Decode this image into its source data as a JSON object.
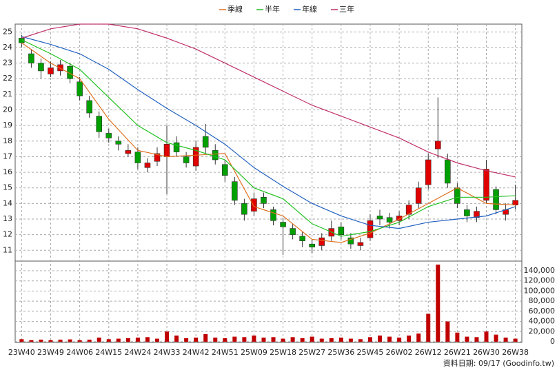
{
  "chart_data": {
    "type": "candlestick",
    "x": [
      0,
      3,
      6,
      9,
      12,
      15,
      18,
      21,
      24,
      27,
      30,
      33,
      36,
      39,
      42,
      45,
      48,
      51,
      54,
      57,
      60,
      63,
      66,
      69,
      72,
      75,
      78,
      81,
      84,
      87,
      90,
      93,
      96,
      99,
      102,
      105,
      108,
      111,
      114,
      117,
      120,
      123,
      126,
      129,
      132,
      135,
      138,
      141,
      144,
      147,
      150,
      153
    ],
    "open": [
      24.6,
      23.6,
      23.0,
      22.3,
      22.5,
      22.8,
      21.8,
      20.6,
      19.6,
      18.5,
      18.0,
      17.2,
      17.3,
      16.3,
      16.7,
      17.0,
      17.9,
      17.0,
      16.4,
      18.3,
      17.4,
      16.5,
      15.4,
      14.0,
      13.5,
      14.4,
      13.6,
      12.8,
      12.4,
      11.9,
      11.4,
      11.3,
      11.9,
      12.5,
      11.8,
      11.3,
      11.8,
      13.2,
      13.1,
      12.9,
      13.3,
      14.0,
      15.2,
      17.5,
      16.8,
      15.0,
      13.6,
      13.1,
      14.2,
      14.9,
      13.3,
      13.9
    ],
    "high": [
      24.8,
      23.9,
      23.3,
      23.1,
      23.2,
      23.0,
      22.1,
      20.9,
      19.9,
      18.8,
      18.3,
      17.8,
      17.6,
      16.9,
      17.6,
      19.0,
      18.3,
      17.3,
      18.0,
      19.1,
      17.8,
      16.8,
      15.7,
      14.3,
      14.7,
      14.7,
      13.8,
      13.1,
      12.7,
      12.2,
      11.7,
      12.1,
      12.9,
      12.8,
      12.1,
      11.8,
      13.3,
      13.6,
      13.4,
      13.5,
      14.2,
      15.4,
      17.2,
      20.8,
      17.2,
      15.3,
      13.9,
      13.8,
      16.8,
      15.1,
      14.0,
      15.2
    ],
    "low": [
      24.0,
      22.7,
      22.0,
      22.1,
      22.2,
      21.7,
      20.6,
      19.5,
      18.2,
      17.9,
      17.4,
      17.0,
      16.2,
      16.0,
      16.4,
      14.6,
      17.0,
      16.3,
      16.1,
      17.2,
      16.5,
      15.4,
      13.9,
      12.9,
      13.2,
      13.7,
      12.6,
      10.7,
      11.7,
      11.2,
      10.8,
      11.0,
      11.6,
      11.7,
      11.1,
      11.0,
      11.6,
      12.6,
      12.4,
      12.6,
      13.0,
      13.7,
      14.9,
      16.9,
      15.0,
      13.7,
      12.8,
      12.8,
      14.0,
      13.3,
      12.9,
      13.6
    ],
    "close": [
      24.3,
      23.0,
      22.5,
      22.7,
      22.9,
      22.0,
      20.9,
      19.8,
      18.6,
      18.2,
      17.8,
      17.4,
      16.6,
      16.6,
      17.2,
      17.8,
      17.3,
      16.6,
      17.6,
      17.6,
      16.8,
      15.8,
      14.2,
      13.3,
      14.3,
      14.0,
      12.9,
      12.5,
      12.0,
      11.6,
      11.2,
      11.8,
      12.4,
      12.0,
      11.4,
      11.5,
      12.9,
      13.0,
      12.8,
      13.2,
      13.9,
      15.0,
      16.8,
      18.0,
      15.3,
      14.0,
      13.2,
      13.5,
      16.2,
      13.6,
      13.6,
      14.2
    ],
    "volume": [
      5000,
      3000,
      4000,
      3000,
      4000,
      4500,
      3000,
      4000,
      8000,
      5000,
      6000,
      7000,
      8000,
      9000,
      6000,
      20000,
      12000,
      7000,
      8000,
      15000,
      8000,
      7000,
      10000,
      9000,
      12000,
      8000,
      9000,
      6000,
      9000,
      7000,
      10000,
      6000,
      7000,
      8000,
      6000,
      5000,
      9000,
      12000,
      10000,
      8000,
      12000,
      16000,
      55000,
      152000,
      40000,
      18000,
      10000,
      9000,
      20000,
      14000,
      8000,
      6000
    ],
    "up_color": "#e00000",
    "down_color": "#00a000",
    "volume_color": "#c00000",
    "series": [
      {
        "name": "季線",
        "color": "#e07020",
        "x": [
          0,
          9,
          18,
          27,
          36,
          45,
          54,
          63,
          72,
          81,
          90,
          99,
          108,
          117,
          126,
          135,
          144,
          153
        ],
        "values": [
          24.3,
          23.0,
          22.0,
          19.4,
          17.4,
          17.0,
          17.1,
          17.2,
          13.8,
          13.2,
          11.7,
          11.5,
          12.1,
          13.0,
          14.0,
          15.0,
          14.0,
          13.9
        ]
      },
      {
        "name": "半年",
        "color": "#20c020",
        "x": [
          0,
          9,
          18,
          27,
          36,
          45,
          54,
          63,
          72,
          81,
          90,
          99,
          108,
          117,
          126,
          135,
          144,
          153
        ],
        "values": [
          24.5,
          23.6,
          22.6,
          20.8,
          19.0,
          17.9,
          17.4,
          16.8,
          15.0,
          14.3,
          12.7,
          11.9,
          12.2,
          12.8,
          13.8,
          14.4,
          14.4,
          14.5
        ]
      },
      {
        "name": "年線",
        "color": "#2060c0",
        "x": [
          0,
          9,
          18,
          27,
          36,
          45,
          54,
          63,
          72,
          81,
          90,
          99,
          108,
          117,
          126,
          135,
          144,
          153
        ],
        "values": [
          24.7,
          24.2,
          23.6,
          22.6,
          21.3,
          20.1,
          19.0,
          17.8,
          16.3,
          15.1,
          14.0,
          13.2,
          12.6,
          12.4,
          12.8,
          13.0,
          13.2,
          13.8
        ]
      },
      {
        "name": "三年",
        "color": "#c0306a",
        "x": [
          0,
          9,
          18,
          27,
          36,
          45,
          54,
          63,
          72,
          81,
          90,
          99,
          108,
          117,
          126,
          135,
          144,
          153
        ],
        "values": [
          24.6,
          25.2,
          25.5,
          25.5,
          25.2,
          24.6,
          23.9,
          23.0,
          22.1,
          21.2,
          20.3,
          19.6,
          18.9,
          18.2,
          17.3,
          16.6,
          16.1,
          15.7
        ]
      }
    ],
    "xlim": [
      -2,
      155
    ],
    "xticks": [
      {
        "value": 0,
        "label": "23W40"
      },
      {
        "value": 9,
        "label": "23W49"
      },
      {
        "value": 18,
        "label": "24W06"
      },
      {
        "value": 27,
        "label": "24W15"
      },
      {
        "value": 36,
        "label": "24W24"
      },
      {
        "value": 45,
        "label": "24W33"
      },
      {
        "value": 54,
        "label": "24W42"
      },
      {
        "value": 63,
        "label": "24W51"
      },
      {
        "value": 72,
        "label": "25W09"
      },
      {
        "value": 81,
        "label": "25W18"
      },
      {
        "value": 90,
        "label": "25W27"
      },
      {
        "value": 99,
        "label": "25W36"
      },
      {
        "value": 108,
        "label": "25W45"
      },
      {
        "value": 117,
        "label": "26W02"
      },
      {
        "value": 126,
        "label": "26W12"
      },
      {
        "value": 135,
        "label": "26W21"
      },
      {
        "value": 144,
        "label": "26W30"
      },
      {
        "value": 153,
        "label": "26W38"
      }
    ],
    "ylim": [
      10.35,
      25.5
    ],
    "yticks": [
      11,
      12,
      13,
      14,
      15,
      16,
      17,
      18,
      19,
      20,
      21,
      22,
      23,
      24,
      25
    ],
    "y2lim": [
      0,
      157700
    ],
    "y2ticks": [
      0,
      {
        "value": 20000,
        "label": "20,000"
      },
      {
        "value": 40000,
        "label": "40,000"
      },
      {
        "value": 60000,
        "label": "60,000"
      },
      {
        "value": 80000,
        "label": "80,000"
      },
      {
        "value": 100000,
        "label": "100,000"
      },
      {
        "value": 120000,
        "label": "120,000"
      },
      {
        "value": 140000,
        "label": "140,000"
      }
    ],
    "grid": true,
    "legend": "top",
    "footer": "資料日期: 09/17 (Goodinfo.tw)"
  }
}
